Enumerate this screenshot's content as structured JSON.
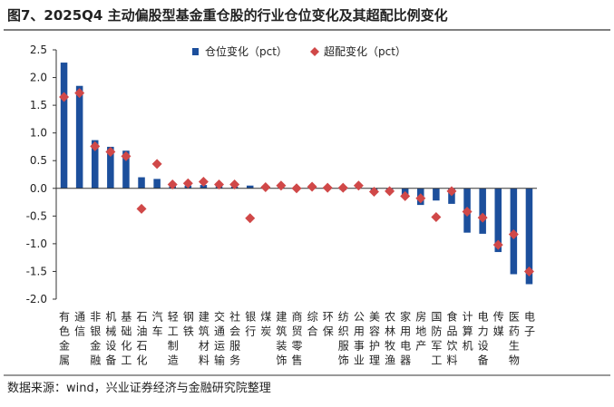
{
  "chart_data": {
    "type": "bar",
    "title": "图7、2025Q4 主动偏股型基金重仓股的行业仓位变化及其超配比例变化",
    "source": "数据来源：wind，兴业证券经济与金融研究院整理",
    "categories": [
      "有色金属",
      "通信",
      "非银金融",
      "机械设备",
      "基础化工",
      "石油石化",
      "汽车",
      "轻工制造",
      "钢铁",
      "建筑材料",
      "交通运输",
      "社会服务",
      "银行",
      "煤炭",
      "建筑装饰",
      "商贸零售",
      "综合",
      "环保",
      "纺织服饰",
      "公用事业",
      "美容护理",
      "农林牧渔",
      "家用电器",
      "房地产",
      "国防军工",
      "食品饮料",
      "计算机",
      "电力设备",
      "传媒",
      "医药生物",
      "电子"
    ],
    "series": [
      {
        "name": "仓位变化（pct）",
        "type": "bar",
        "color": "#1c4f9c",
        "values": [
          2.27,
          1.85,
          0.87,
          0.75,
          0.68,
          0.2,
          0.17,
          0.07,
          0.05,
          0.06,
          0.04,
          0.03,
          0.05,
          0.01,
          0.01,
          -0.01,
          0.0,
          -0.02,
          -0.03,
          0.0,
          -0.05,
          -0.08,
          -0.14,
          -0.3,
          -0.22,
          -0.28,
          -0.8,
          -0.82,
          -1.15,
          -1.55,
          -1.73
        ]
      },
      {
        "name": "超配变化（pct）",
        "type": "scatter",
        "color": "#d04848",
        "values": [
          1.65,
          1.72,
          0.76,
          0.66,
          0.58,
          -0.37,
          0.44,
          0.07,
          0.09,
          0.12,
          0.07,
          0.07,
          -0.54,
          0.02,
          0.05,
          0.0,
          0.03,
          0.01,
          0.01,
          0.05,
          -0.06,
          -0.05,
          -0.14,
          -0.18,
          -0.52,
          -0.05,
          -0.42,
          -0.53,
          -1.02,
          -0.83,
          -1.5
        ]
      }
    ],
    "ylim": [
      -2.0,
      2.5
    ],
    "yticks": [
      2.5,
      {
        "value": 2.0,
        "label": "2.0"
      },
      1.5,
      {
        "value": 1.0,
        "label": "1.0"
      },
      0.5,
      {
        "value": 0,
        "label": "0.0"
      },
      -0.5,
      {
        "value": -1.0,
        "label": "-1.0"
      },
      -1.5,
      {
        "value": -2.0,
        "label": "-2.0"
      }
    ],
    "legend": "top"
  }
}
